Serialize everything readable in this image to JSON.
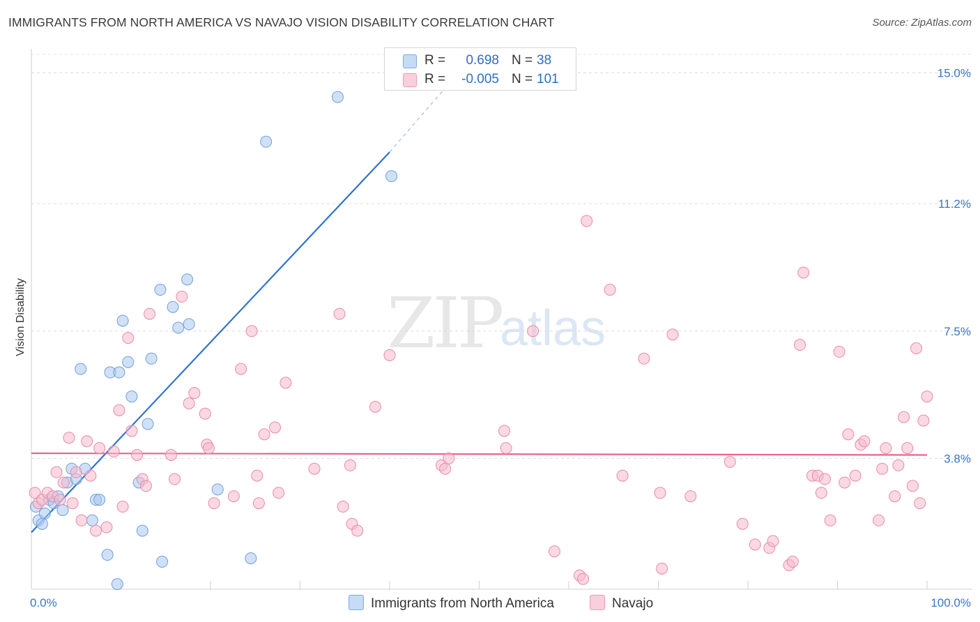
{
  "header": {
    "title": "IMMIGRANTS FROM NORTH AMERICA VS NAVAJO VISION DISABILITY CORRELATION CHART",
    "source": "Source: ZipAtlas.com"
  },
  "watermark": {
    "part1": "ZIP",
    "part2": "atlas"
  },
  "legend": {
    "series1": {
      "r_label": "R =",
      "r_value": "0.698",
      "n_label": "N =",
      "n_value": "38",
      "color": "#a9c8f0"
    },
    "series2": {
      "r_label": "R =",
      "r_value": "-0.005",
      "n_label": "N =",
      "n_value": "101",
      "color": "#f6b9cc"
    }
  },
  "bottom_legend": {
    "series1_label": "Immigrants from North America",
    "series2_label": "Navajo"
  },
  "chart_data": {
    "type": "scatter",
    "title": "IMMIGRANTS FROM NORTH AMERICA VS NAVAJO VISION DISABILITY CORRELATION CHART",
    "xlabel": "",
    "ylabel": "Vision Disability",
    "xlim": [
      0,
      100
    ],
    "ylim": [
      0,
      15.7
    ],
    "x_tick_labels": [
      "0.0%",
      "100.0%"
    ],
    "y_ticks": [
      3.8,
      7.5,
      11.2,
      15.0
    ],
    "y_tick_labels": [
      "3.8%",
      "7.5%",
      "11.2%",
      "15.0%"
    ],
    "grid": true,
    "series": [
      {
        "name": "Immigrants from North America",
        "color": "#a9c8f0",
        "stroke": "#6f9fd8",
        "trend": {
          "x0": 0,
          "y0": 1.65,
          "x1": 40,
          "y1": 12.7,
          "dashed_to_x": 46,
          "dashed_to_y": 14.5,
          "color": "#3072d0"
        },
        "points": [
          [
            0.5,
            2.4
          ],
          [
            0.8,
            2.0
          ],
          [
            1.2,
            1.9
          ],
          [
            1.5,
            2.2
          ],
          [
            2.0,
            2.6
          ],
          [
            2.5,
            2.5
          ],
          [
            3.0,
            2.7
          ],
          [
            3.5,
            2.3
          ],
          [
            4.0,
            3.1
          ],
          [
            4.5,
            3.5
          ],
          [
            5.0,
            3.2
          ],
          [
            5.5,
            6.4
          ],
          [
            6.0,
            3.5
          ],
          [
            6.8,
            2.0
          ],
          [
            7.2,
            2.6
          ],
          [
            7.6,
            2.6
          ],
          [
            8.5,
            1.0
          ],
          [
            8.8,
            6.3
          ],
          [
            9.6,
            0.15
          ],
          [
            9.8,
            6.3
          ],
          [
            10.2,
            7.8
          ],
          [
            10.8,
            6.6
          ],
          [
            11.2,
            5.6
          ],
          [
            12.0,
            3.1
          ],
          [
            12.4,
            1.7
          ],
          [
            13.0,
            4.8
          ],
          [
            13.4,
            6.7
          ],
          [
            14.4,
            8.7
          ],
          [
            14.6,
            0.8
          ],
          [
            15.8,
            8.2
          ],
          [
            16.4,
            7.6
          ],
          [
            17.4,
            9.0
          ],
          [
            17.6,
            7.7
          ],
          [
            20.8,
            2.9
          ],
          [
            24.5,
            0.9
          ],
          [
            26.2,
            13.0
          ],
          [
            34.2,
            14.3
          ],
          [
            40.2,
            12.0
          ]
        ]
      },
      {
        "name": "Navajo",
        "color": "#f6b9cc",
        "stroke": "#e98aa8",
        "trend": {
          "x0": 0,
          "y0": 3.95,
          "x1": 100,
          "y1": 3.9,
          "color": "#e8648e"
        },
        "points": [
          [
            0.4,
            2.8
          ],
          [
            0.8,
            2.5
          ],
          [
            1.2,
            2.6
          ],
          [
            1.8,
            2.8
          ],
          [
            2.4,
            2.7
          ],
          [
            2.8,
            3.4
          ],
          [
            3.2,
            2.6
          ],
          [
            3.6,
            3.1
          ],
          [
            4.2,
            4.4
          ],
          [
            4.6,
            2.5
          ],
          [
            5.0,
            3.4
          ],
          [
            5.6,
            2.0
          ],
          [
            6.2,
            4.3
          ],
          [
            6.6,
            3.3
          ],
          [
            7.2,
            1.7
          ],
          [
            7.6,
            4.1
          ],
          [
            8.4,
            1.8
          ],
          [
            9.2,
            4.0
          ],
          [
            9.8,
            5.2
          ],
          [
            10.2,
            2.4
          ],
          [
            10.8,
            7.3
          ],
          [
            11.2,
            4.6
          ],
          [
            11.8,
            3.9
          ],
          [
            12.4,
            3.2
          ],
          [
            12.8,
            3.0
          ],
          [
            13.2,
            8.0
          ],
          [
            15.6,
            3.9
          ],
          [
            16.0,
            3.2
          ],
          [
            16.8,
            8.5
          ],
          [
            17.6,
            5.4
          ],
          [
            18.2,
            5.7
          ],
          [
            19.4,
            5.1
          ],
          [
            19.6,
            4.2
          ],
          [
            19.8,
            4.1
          ],
          [
            20.4,
            2.5
          ],
          [
            22.6,
            2.7
          ],
          [
            23.4,
            6.4
          ],
          [
            24.6,
            7.5
          ],
          [
            25.2,
            3.3
          ],
          [
            25.4,
            2.5
          ],
          [
            26.0,
            4.5
          ],
          [
            27.2,
            4.7
          ],
          [
            27.6,
            2.8
          ],
          [
            28.4,
            6.0
          ],
          [
            31.6,
            3.5
          ],
          [
            34.4,
            8.0
          ],
          [
            34.8,
            2.4
          ],
          [
            35.6,
            3.6
          ],
          [
            35.8,
            1.9
          ],
          [
            36.4,
            1.7
          ],
          [
            38.4,
            5.3
          ],
          [
            40.0,
            6.8
          ],
          [
            45.8,
            3.6
          ],
          [
            46.2,
            3.5
          ],
          [
            46.6,
            3.8
          ],
          [
            52.8,
            4.6
          ],
          [
            53.0,
            4.1
          ],
          [
            56.0,
            7.5
          ],
          [
            58.4,
            1.1
          ],
          [
            61.2,
            0.4
          ],
          [
            61.6,
            0.3
          ],
          [
            62.0,
            10.7
          ],
          [
            64.6,
            8.7
          ],
          [
            66.0,
            3.3
          ],
          [
            68.4,
            6.7
          ],
          [
            70.2,
            2.8
          ],
          [
            70.4,
            0.6
          ],
          [
            71.6,
            7.4
          ],
          [
            73.6,
            2.7
          ],
          [
            78.0,
            3.7
          ],
          [
            79.4,
            1.9
          ],
          [
            80.8,
            1.3
          ],
          [
            82.4,
            1.2
          ],
          [
            82.8,
            1.4
          ],
          [
            84.6,
            0.7
          ],
          [
            85.0,
            0.8
          ],
          [
            85.8,
            7.1
          ],
          [
            86.2,
            9.2
          ],
          [
            87.2,
            3.3
          ],
          [
            87.8,
            3.3
          ],
          [
            88.2,
            2.8
          ],
          [
            88.6,
            3.2
          ],
          [
            89.2,
            2.0
          ],
          [
            90.2,
            6.9
          ],
          [
            90.8,
            3.1
          ],
          [
            91.2,
            4.5
          ],
          [
            92.0,
            3.3
          ],
          [
            92.6,
            4.2
          ],
          [
            93.0,
            4.3
          ],
          [
            94.6,
            2.0
          ],
          [
            95.0,
            3.5
          ],
          [
            95.4,
            4.1
          ],
          [
            96.4,
            2.7
          ],
          [
            96.8,
            3.6
          ],
          [
            97.4,
            5.0
          ],
          [
            97.8,
            4.1
          ],
          [
            98.4,
            3.0
          ],
          [
            98.8,
            7.0
          ],
          [
            99.2,
            2.5
          ],
          [
            99.6,
            4.9
          ],
          [
            100.0,
            5.6
          ]
        ]
      }
    ]
  }
}
